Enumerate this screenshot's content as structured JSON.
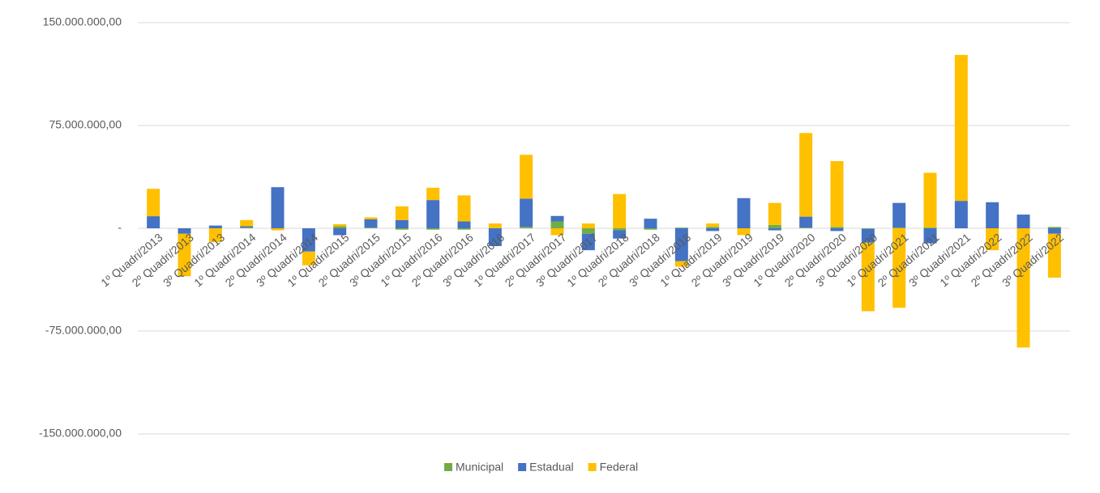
{
  "chart_data": {
    "type": "stacked_bar",
    "categories": [
      "1º Quadri/2013",
      "2º Quadri/2013",
      "3º Quadri/2013",
      "1º Quadri/2014",
      "2º Quadri/2014",
      "3º Quadri/2014",
      "1º Quadri/2015",
      "2º Quadri/2015",
      "3º Quadri/2015",
      "1º Quadri/2016",
      "2º Quadri/2016",
      "3º Quadri/2016",
      "1º Quadri/2017",
      "2º Quadri/2017",
      "3º Quadri/2017",
      "1º Quadri/2018",
      "2º Quadri/2018",
      "3º Quadri/2018",
      "1º Quadri/2019",
      "2º Quadri/2019",
      "3º Quadri/2019",
      "1º Quadri/2020",
      "2º Quadri/2020",
      "3º Quadri/2020",
      "1º Quadri/2021",
      "2º Quadri/2021",
      "3º Quadri/2021",
      "1º Quadri/2022",
      "2º Quadri/2022",
      "3º Quadri/2022"
    ],
    "series": [
      {
        "name": "Municipal",
        "color": "#70ad47",
        "values": [
          0,
          0,
          0,
          500000,
          0,
          0,
          1500000,
          500000,
          -1000000,
          -1000000,
          -1000000,
          0,
          1000000,
          5000000,
          -4000000,
          -1500000,
          -1000000,
          500000,
          1000000,
          0,
          2500000,
          500000,
          1000000,
          -500000,
          500000,
          500000,
          0,
          0,
          0,
          1000000
        ]
      },
      {
        "name": "Estadual",
        "color": "#4472c4",
        "values": [
          8800000,
          -4000000,
          2000000,
          1000000,
          30000000,
          -17000000,
          -5000000,
          6000000,
          6000000,
          20600000,
          5000000,
          -13000000,
          20600000,
          4000000,
          -12000000,
          -6000000,
          7000000,
          -24000000,
          -2000000,
          22000000,
          -1500000,
          8000000,
          -2000000,
          -10000000,
          18000000,
          -11000000,
          20000000,
          19000000,
          10000000,
          -4000000
        ]
      },
      {
        "name": "Federal",
        "color": "#ffc000",
        "values": [
          20000000,
          -31000000,
          -10000000,
          4500000,
          -1500000,
          -10000000,
          1500000,
          1500000,
          10000000,
          9000000,
          19000000,
          3500000,
          32000000,
          -5000000,
          3500000,
          25000000,
          0,
          -4000000,
          2500000,
          -5000000,
          16000000,
          61000000,
          48000000,
          -50000000,
          -58000000,
          40000000,
          106500000,
          -16000000,
          -87000000,
          -32000000
        ]
      }
    ],
    "ylim": [
      -150000000,
      150000000
    ],
    "yticks": [
      {
        "value": 150000000,
        "label": "150.000.000,00"
      },
      {
        "value": 75000000,
        "label": "75.000.000,00"
      },
      {
        "value": 0,
        "label": "-"
      },
      {
        "value": -75000000,
        "label": "-75.000.000,00"
      },
      {
        "value": -150000000,
        "label": "-150.000.000,00"
      }
    ],
    "grid": true,
    "legend": "bottom"
  }
}
